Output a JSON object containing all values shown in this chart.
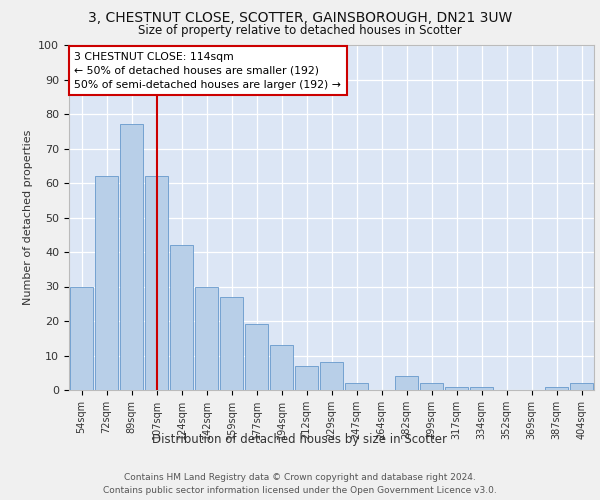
{
  "title1": "3, CHESTNUT CLOSE, SCOTTER, GAINSBOROUGH, DN21 3UW",
  "title2": "Size of property relative to detached houses in Scotter",
  "xlabel": "Distribution of detached houses by size in Scotter",
  "ylabel": "Number of detached properties",
  "categories": [
    "54sqm",
    "72sqm",
    "89sqm",
    "107sqm",
    "124sqm",
    "142sqm",
    "159sqm",
    "177sqm",
    "194sqm",
    "212sqm",
    "229sqm",
    "247sqm",
    "264sqm",
    "282sqm",
    "299sqm",
    "317sqm",
    "334sqm",
    "352sqm",
    "369sqm",
    "387sqm",
    "404sqm"
  ],
  "values": [
    30,
    62,
    77,
    62,
    42,
    30,
    27,
    19,
    13,
    7,
    8,
    2,
    0,
    4,
    2,
    1,
    1,
    0,
    0,
    1,
    2
  ],
  "bar_color": "#b8cfe8",
  "bar_edge_color": "#6699cc",
  "vline_x": 3,
  "vline_color": "#cc0000",
  "annotation_text": "3 CHESTNUT CLOSE: 114sqm\n← 50% of detached houses are smaller (192)\n50% of semi-detached houses are larger (192) →",
  "annotation_box_color": "#ffffff",
  "annotation_box_edge": "#cc0000",
  "ylim": [
    0,
    100
  ],
  "yticks": [
    0,
    10,
    20,
    30,
    40,
    50,
    60,
    70,
    80,
    90,
    100
  ],
  "background_color": "#dce6f5",
  "fig_color": "#f0f0f0",
  "footer": "Contains HM Land Registry data © Crown copyright and database right 2024.\nContains public sector information licensed under the Open Government Licence v3.0."
}
